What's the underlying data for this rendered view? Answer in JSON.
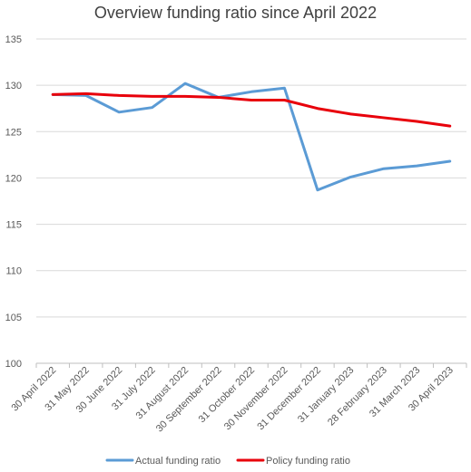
{
  "chart_data": {
    "type": "line",
    "title": "Overview funding ratio since April 2022",
    "xlabel": "",
    "ylabel": "",
    "ylim": [
      100,
      135
    ],
    "yticks": [
      100,
      105,
      110,
      115,
      120,
      125,
      130,
      135
    ],
    "grid": true,
    "legend_position": "bottom",
    "categories": [
      "30 April 2022",
      "31 May 2022",
      "30 June 2022",
      "31 July 2022",
      "31 August 2022",
      "30 September 2022",
      "31 October 2022",
      "30 November 2022",
      "31 December 2022",
      "31 January 2023",
      "28 February 2023",
      "31 March 2023",
      "30 April 2023"
    ],
    "series": [
      {
        "name": "Actual funding ratio",
        "color": "#5B9BD5",
        "values": [
          129.0,
          128.9,
          127.1,
          127.6,
          130.2,
          128.7,
          129.3,
          129.7,
          118.7,
          120.1,
          121.0,
          121.3,
          121.8
        ]
      },
      {
        "name": "Policy funding ratio",
        "color": "#E8000B",
        "values": [
          129.0,
          129.1,
          128.9,
          128.8,
          128.8,
          128.7,
          128.4,
          128.4,
          127.5,
          126.9,
          126.5,
          126.1,
          125.6
        ]
      }
    ]
  }
}
